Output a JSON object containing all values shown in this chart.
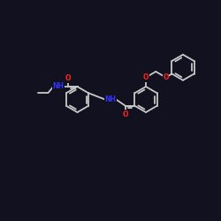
{
  "background_color": "#111120",
  "bond_color": "#c8c8c8",
  "figsize": [
    2.5,
    2.5
  ],
  "dpi": 100,
  "O_color": "#ff2222",
  "N_color": "#3333ff",
  "xlim": [
    0,
    10
  ],
  "ylim": [
    0,
    10
  ]
}
